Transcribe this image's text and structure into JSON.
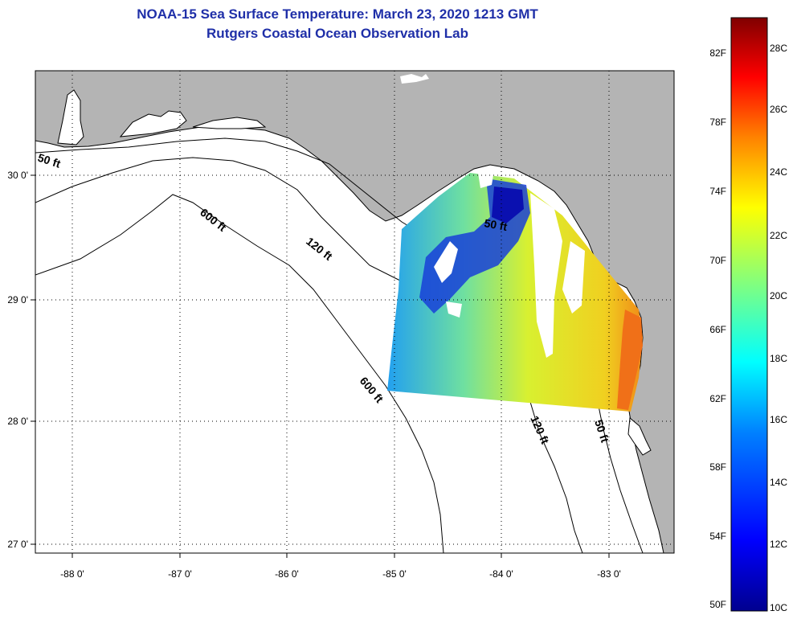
{
  "title": "NOAA-15 Sea Surface Temperature:  March 23, 2020 1213 GMT",
  "subtitle": "Rutgers Coastal Ocean Observation Lab",
  "map": {
    "lon_ticks": [
      "-88 0'",
      "-87 0'",
      "-86 0'",
      "-85 0'",
      "-84 0'",
      "-83 0'"
    ],
    "lat_ticks": [
      "30 0'",
      "29 0'",
      "28 0'",
      "27 0'"
    ],
    "contour_labels": {
      "c50_west": "50 ft",
      "c600_north": "600 ft",
      "c120_north": "120 ft",
      "c50_bigbend": "50 ft",
      "c600_south": "600 ft",
      "c120_south": "120 ft",
      "c50_south": "50 ft"
    },
    "colors": {
      "land": "#b4b4b4",
      "ocean": "#ffffff",
      "contour": "#000000"
    }
  },
  "colorbar": {
    "fahrenheit_labels": [
      "82F",
      "78F",
      "74F",
      "70F",
      "66F",
      "62F",
      "58F",
      "54F",
      "50F"
    ],
    "celsius_labels": [
      "28C",
      "26C",
      "24C",
      "22C",
      "20C",
      "18C",
      "16C",
      "14C",
      "12C",
      "10C"
    ],
    "colors": [
      "#00008f",
      "#0000ff",
      "#0080ff",
      "#00ffff",
      "#80ff80",
      "#ffff00",
      "#ff8000",
      "#ff0000",
      "#800000"
    ]
  }
}
